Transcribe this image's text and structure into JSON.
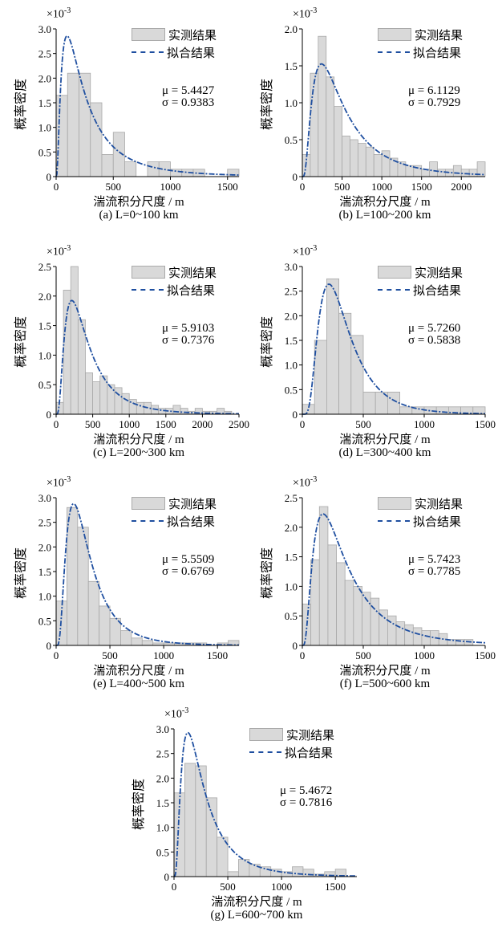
{
  "legend": {
    "measured": "实测结果",
    "fitted": "拟合结果"
  },
  "ylabel": "概率密度",
  "xlabel": "湍流积分尺度 / m",
  "exponent_base": "×10",
  "exponent_power": "-3",
  "chart_data": [
    {
      "type": "bar",
      "caption": "(a) L=0~100 km",
      "mu": "μ = 5.4427",
      "sigma": "σ = 0.9383",
      "xlim": [
        0,
        1600
      ],
      "xticks": [
        0,
        500,
        1000,
        1500
      ],
      "ylim": [
        0,
        3.0
      ],
      "yticks": [
        "0",
        "0.5",
        "1.0",
        "1.5",
        "2.0",
        "2.5",
        "3.0"
      ],
      "bin_edges": [
        0,
        100,
        200,
        300,
        400,
        500,
        600,
        700,
        800,
        900,
        1000,
        1100,
        1200,
        1300,
        1400,
        1500,
        1600
      ],
      "values": [
        1.65,
        2.1,
        2.1,
        1.5,
        0.45,
        0.9,
        0.3,
        0.0,
        0.3,
        0.3,
        0.15,
        0.15,
        0.15,
        0.0,
        0.0,
        0.15
      ],
      "fit_mu": 5.4427,
      "fit_sigma": 0.9383
    },
    {
      "type": "bar",
      "caption": "(b) L=100~200 km",
      "mu": "μ = 6.1129",
      "sigma": "σ = 0.7929",
      "xlim": [
        0,
        2300
      ],
      "xticks": [
        0,
        500,
        1000,
        1500,
        2000
      ],
      "ylim": [
        0,
        2.0
      ],
      "yticks": [
        "0",
        "0.5",
        "1.0",
        "1.5",
        "2.0"
      ],
      "bin_edges": [
        0,
        100,
        200,
        300,
        400,
        500,
        600,
        700,
        800,
        900,
        1000,
        1100,
        1200,
        1300,
        1400,
        1500,
        1600,
        1700,
        1800,
        1900,
        2000,
        2100,
        2200,
        2300
      ],
      "values": [
        0.3,
        1.4,
        1.9,
        1.35,
        0.95,
        0.55,
        0.5,
        0.45,
        0.4,
        0.3,
        0.35,
        0.25,
        0.2,
        0.15,
        0.15,
        0.1,
        0.2,
        0.1,
        0.1,
        0.15,
        0.1,
        0.1,
        0.2
      ],
      "fit_mu": 6.1129,
      "fit_sigma": 0.7929
    },
    {
      "type": "bar",
      "caption": "(c) L=200~300 km",
      "mu": "μ = 5.9103",
      "sigma": "σ = 0.7376",
      "xlim": [
        0,
        2500
      ],
      "xticks": [
        0,
        500,
        1000,
        1500,
        2000,
        2500
      ],
      "ylim": [
        0,
        2.5
      ],
      "yticks": [
        "0",
        "0.5",
        "1.0",
        "1.5",
        "2.0",
        "2.5"
      ],
      "bin_edges": [
        0,
        100,
        200,
        300,
        400,
        500,
        600,
        700,
        800,
        900,
        1000,
        1100,
        1200,
        1300,
        1400,
        1500,
        1600,
        1700,
        1800,
        1900,
        2000,
        2100,
        2200,
        2300,
        2400
      ],
      "values": [
        0.2,
        2.1,
        2.5,
        1.6,
        0.7,
        0.55,
        0.65,
        0.5,
        0.45,
        0.35,
        0.25,
        0.2,
        0.2,
        0.15,
        0.1,
        0.1,
        0.15,
        0.1,
        0.05,
        0.1,
        0.05,
        0.05,
        0.1,
        0.05
      ],
      "fit_mu": 5.9103,
      "fit_sigma": 0.7376
    },
    {
      "type": "bar",
      "caption": "(d) L=300~400 km",
      "mu": "μ = 5.7260",
      "sigma": "σ = 0.5838",
      "xlim": [
        0,
        1500
      ],
      "xticks": [
        0,
        500,
        1000,
        1500
      ],
      "ylim": [
        0,
        3.0
      ],
      "yticks": [
        "0",
        "0.5",
        "1.0",
        "1.5",
        "2.0",
        "2.5",
        "3.0"
      ],
      "bin_edges": [
        0,
        100,
        200,
        300,
        400,
        500,
        600,
        700,
        800,
        900,
        1000,
        1100,
        1200,
        1300,
        1400,
        1500
      ],
      "values": [
        0.2,
        1.5,
        2.75,
        2.05,
        1.6,
        0.45,
        0.45,
        0.45,
        0.15,
        0.15,
        0.15,
        0.15,
        0.15,
        0.15,
        0.15
      ],
      "fit_mu": 5.726,
      "fit_sigma": 0.5838
    },
    {
      "type": "bar",
      "caption": "(e) L=400~500 km",
      "mu": "μ = 5.5509",
      "sigma": "σ = 0.6769",
      "xlim": [
        0,
        1700
      ],
      "xticks": [
        0,
        500,
        1000,
        1500
      ],
      "ylim": [
        0,
        3.0
      ],
      "yticks": [
        "0",
        "0.5",
        "1.0",
        "1.5",
        "2.0",
        "2.5",
        "3.0"
      ],
      "bin_edges": [
        0,
        100,
        200,
        300,
        400,
        500,
        600,
        700,
        800,
        900,
        1000,
        1100,
        1200,
        1300,
        1400,
        1500,
        1600,
        1700
      ],
      "values": [
        0.9,
        2.8,
        2.4,
        1.3,
        0.8,
        0.55,
        0.3,
        0.15,
        0.1,
        0.05,
        0.05,
        0.05,
        0.05,
        0.05,
        0.0,
        0.05,
        0.1
      ],
      "fit_mu": 5.5509,
      "fit_sigma": 0.6769
    },
    {
      "type": "bar",
      "caption": "(f) L=500~600 km",
      "mu": "μ = 5.7423",
      "sigma": "σ = 0.7785",
      "xlim": [
        0,
        1500
      ],
      "xticks": [
        0,
        500,
        1000,
        1500
      ],
      "ylim": [
        0,
        2.5
      ],
      "yticks": [
        "0",
        "0.5",
        "1.0",
        "1.5",
        "2.0",
        "2.5"
      ],
      "bin_edges": [
        0,
        70,
        140,
        210,
        280,
        350,
        420,
        490,
        560,
        630,
        700,
        770,
        840,
        910,
        980,
        1050,
        1120,
        1190,
        1260,
        1330,
        1400
      ],
      "values": [
        0.7,
        1.45,
        2.35,
        1.7,
        1.4,
        1.1,
        1.0,
        0.9,
        0.8,
        0.6,
        0.5,
        0.4,
        0.35,
        0.3,
        0.25,
        0.25,
        0.2,
        0.1,
        0.1,
        0.1
      ],
      "fit_mu": 5.7423,
      "fit_sigma": 0.7785
    },
    {
      "type": "bar",
      "caption": "(g) L=600~700 km",
      "mu": "μ = 5.4672",
      "sigma": "σ = 0.7816",
      "xlim": [
        0,
        1700
      ],
      "xticks": [
        0,
        500,
        1000,
        1500
      ],
      "ylim": [
        0,
        3.0
      ],
      "yticks": [
        "0",
        "0.5",
        "1.0",
        "1.5",
        "2.0",
        "2.5",
        "3.0"
      ],
      "bin_edges": [
        0,
        100,
        200,
        300,
        400,
        500,
        600,
        700,
        800,
        900,
        1000,
        1100,
        1200,
        1300,
        1400,
        1500,
        1600
      ],
      "values": [
        1.7,
        2.3,
        2.25,
        1.6,
        0.8,
        0.1,
        0.35,
        0.25,
        0.2,
        0.15,
        0.1,
        0.2,
        0.15,
        0.05,
        0.1,
        0.15
      ],
      "fit_mu": 5.4672,
      "fit_sigma": 0.7816
    }
  ]
}
